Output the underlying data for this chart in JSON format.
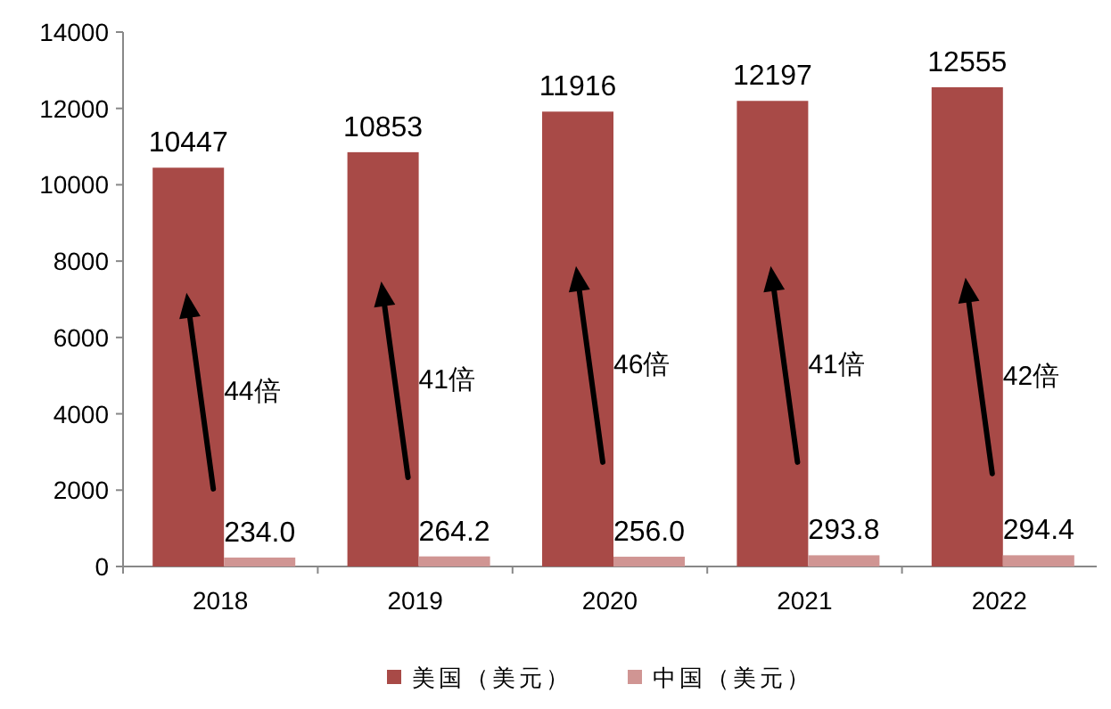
{
  "chart_data": {
    "type": "bar",
    "categories": [
      "2018",
      "2019",
      "2020",
      "2021",
      "2022"
    ],
    "series": [
      {
        "name": "美国（美元）",
        "color": "#a84a47",
        "values": [
          10447,
          10853,
          11916,
          12197,
          12555
        ],
        "value_labels": [
          "10447",
          "10853",
          "11916",
          "12197",
          "12555"
        ]
      },
      {
        "name": "中国（美元）",
        "color": "#d09593",
        "values": [
          234.0,
          264.2,
          256.0,
          293.8,
          294.4
        ],
        "value_labels": [
          "234.0",
          "264.2",
          "256.0",
          "293.8",
          "294.4"
        ]
      }
    ],
    "ylim": [
      0,
      14000
    ],
    "yticks": [
      0,
      2000,
      4000,
      6000,
      8000,
      10000,
      12000,
      14000
    ],
    "annotations": [
      {
        "text": "44倍",
        "x": "2018",
        "y": 4600
      },
      {
        "text": "41倍",
        "x": "2019",
        "y": 4900
      },
      {
        "text": "46倍",
        "x": "2020",
        "y": 5300
      },
      {
        "text": "41倍",
        "x": "2021",
        "y": 5300
      },
      {
        "text": "42倍",
        "x": "2022",
        "y": 5000
      }
    ],
    "grid": false,
    "legend": "bottom"
  }
}
